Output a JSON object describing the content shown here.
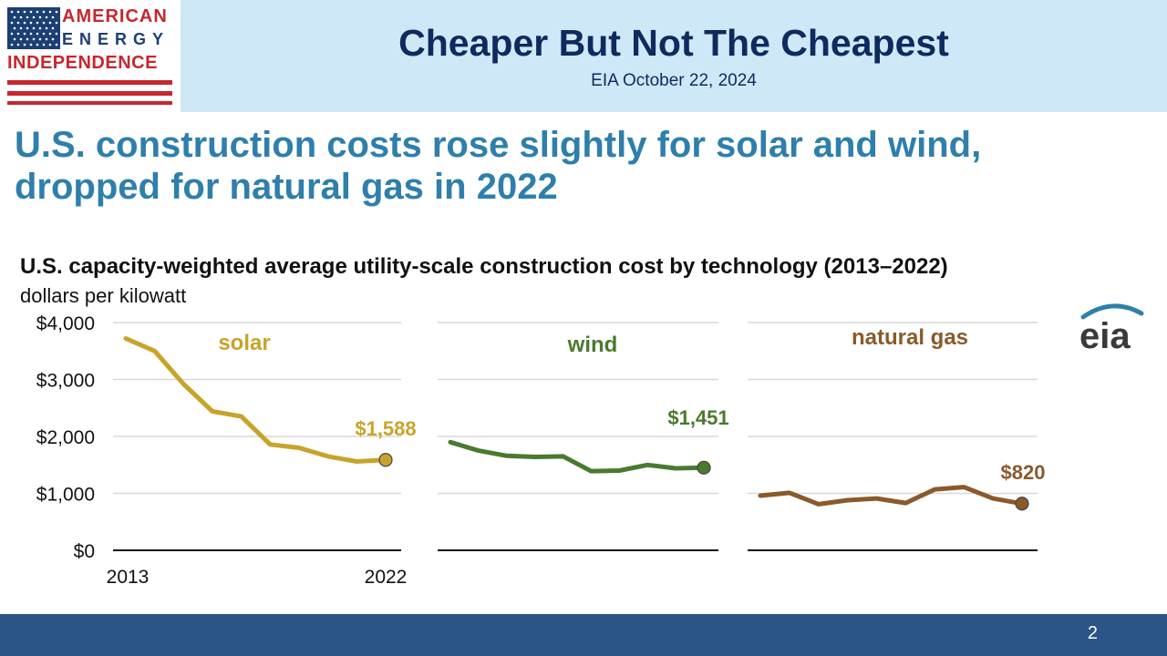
{
  "logo": {
    "line1": "AMERICAN",
    "line2": "ENERGY",
    "line3": "INDEPENDENCE",
    "flag_blue": "#1c3f73",
    "flag_red": "#c8262f"
  },
  "header": {
    "title": "Cheaper But Not The Cheapest",
    "subtitle": "EIA October 22, 2024"
  },
  "headline": "U.S. construction costs rose slightly for solar and wind, dropped for natural gas in 2022",
  "footer": {
    "page_number": "2"
  },
  "chart_data": {
    "type": "line",
    "title": "U.S. capacity-weighted average utility-scale construction cost by technology (2013–2022)",
    "ylabel": "dollars per kilowatt",
    "ylim": [
      0,
      4000
    ],
    "y_ticks": [
      "$4,000",
      "$3,000",
      "$2,000",
      "$1,000",
      "$0"
    ],
    "y_tick_values": [
      4000,
      3000,
      2000,
      1000,
      0
    ],
    "x": [
      2013,
      2014,
      2015,
      2016,
      2017,
      2018,
      2019,
      2020,
      2021,
      2022
    ],
    "x_tick_labels": [
      "2013",
      "2022"
    ],
    "grid": true,
    "logo_text": "eia",
    "series": [
      {
        "name": "solar",
        "color": "#c8a32b",
        "values": [
          3720,
          3500,
          2920,
          2440,
          2350,
          1860,
          1800,
          1650,
          1560,
          1588
        ],
        "end_label": "$1,588"
      },
      {
        "name": "wind",
        "color": "#4a7a2e",
        "values": [
          1900,
          1750,
          1660,
          1640,
          1650,
          1390,
          1400,
          1500,
          1440,
          1451
        ],
        "end_label": "$1,451"
      },
      {
        "name": "natural gas",
        "color": "#8a5a2b",
        "values": [
          960,
          1010,
          810,
          880,
          910,
          830,
          1070,
          1110,
          910,
          820
        ],
        "end_label": "$820"
      }
    ]
  }
}
